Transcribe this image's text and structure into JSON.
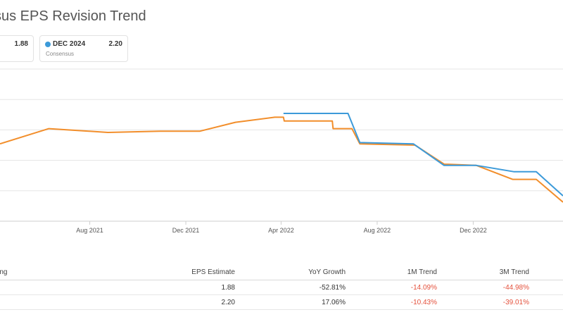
{
  "title": "sus EPS Revision Trend",
  "legend": [
    {
      "period": "",
      "sub": "",
      "value": "1.88",
      "color": "#f28e2b"
    },
    {
      "period": "DEC 2024",
      "sub": "Consensus",
      "value": "2.20",
      "color": "#3c9ad9"
    }
  ],
  "chart_data": {
    "type": "line",
    "x_ticks": [
      "Aug 2021",
      "Dec 2021",
      "Apr 2022",
      "Aug 2022",
      "Dec 2022"
    ],
    "x_tick_dates": [
      "2021-08-01",
      "2021-12-01",
      "2022-04-01",
      "2022-08-01",
      "2022-12-01"
    ],
    "x_range": [
      "2021-04-09",
      "2023-03-25"
    ],
    "y_range": [
      1.55,
      2.75
    ],
    "grid": true,
    "series": [
      {
        "color": "#f28e2b",
        "points": [
          [
            "2021-04-09",
            2.16
          ],
          [
            "2021-06-10",
            2.28
          ],
          [
            "2021-08-24",
            2.25
          ],
          [
            "2021-10-29",
            2.26
          ],
          [
            "2021-12-19",
            2.26
          ],
          [
            "2022-02-02",
            2.33
          ],
          [
            "2022-03-24",
            2.37
          ],
          [
            "2022-04-04",
            2.37
          ],
          [
            "2022-04-05",
            2.34
          ],
          [
            "2022-06-05",
            2.34
          ],
          [
            "2022-06-06",
            2.28
          ],
          [
            "2022-06-30",
            2.28
          ],
          [
            "2022-07-10",
            2.16
          ],
          [
            "2022-09-18",
            2.15
          ],
          [
            "2022-10-25",
            2.0
          ],
          [
            "2022-12-05",
            1.99
          ],
          [
            "2023-01-20",
            1.88
          ],
          [
            "2023-02-19",
            1.88
          ],
          [
            "2023-03-25",
            1.7
          ]
        ]
      },
      {
        "color": "#3c9ad9",
        "points": [
          [
            "2022-04-04",
            2.4
          ],
          [
            "2022-06-25",
            2.4
          ],
          [
            "2022-07-10",
            2.17
          ],
          [
            "2022-09-16",
            2.16
          ],
          [
            "2022-10-25",
            1.99
          ],
          [
            "2022-12-05",
            1.99
          ],
          [
            "2023-01-22",
            1.94
          ],
          [
            "2023-02-19",
            1.94
          ],
          [
            "2023-03-25",
            1.75
          ]
        ]
      }
    ]
  },
  "table": {
    "headers": [
      "nding",
      "EPS Estimate",
      "YoY Growth",
      "1M Trend",
      "3M Trend"
    ],
    "rows": [
      [
        "",
        "1.88",
        "-52.81%",
        "-14.09%",
        "-44.98%"
      ],
      [
        "",
        "2.20",
        "17.06%",
        "-10.43%",
        "-39.01%"
      ]
    ]
  }
}
